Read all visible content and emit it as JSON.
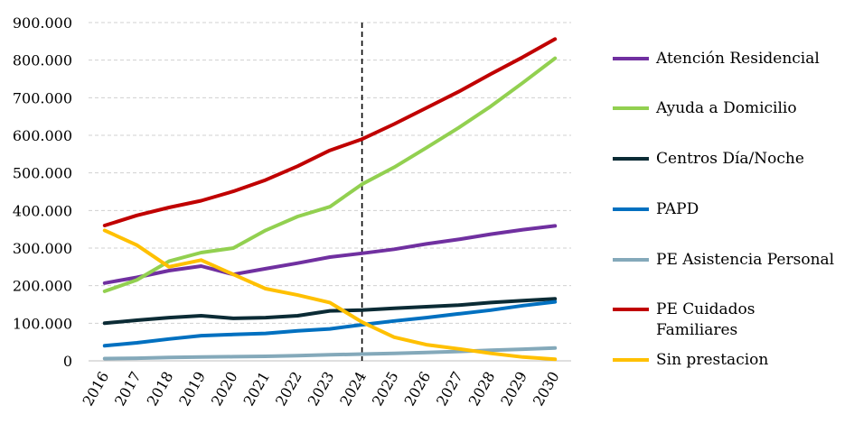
{
  "chart_data": {
    "type": "line",
    "x": [
      "2016",
      "2017",
      "2018",
      "2019",
      "2020",
      "2021",
      "2022",
      "2023",
      "2024",
      "2025",
      "2026",
      "2027",
      "2028",
      "2029",
      "2030"
    ],
    "yticks": [
      "0",
      "100.000",
      "200.000",
      "300.000",
      "400.000",
      "500.000",
      "600.000",
      "700.000",
      "800.000",
      "900.000"
    ],
    "ylim": [
      0,
      900000
    ],
    "grid": true,
    "legend_position": "right",
    "vertical_marker_x": "2024",
    "series": [
      {
        "name": "Atención Residencial",
        "color": "#7030A0",
        "values": [
          207000,
          222000,
          240000,
          252000,
          230000,
          245000,
          260000,
          276000,
          286000,
          297000,
          311000,
          323000,
          337000,
          349000,
          359000
        ]
      },
      {
        "name": "Ayuda a Domicilio",
        "color": "#92D050",
        "values": [
          185000,
          215000,
          265000,
          288000,
          300000,
          347000,
          384000,
          410000,
          470000,
          515000,
          567000,
          620000,
          677000,
          740000,
          805000
        ]
      },
      {
        "name": "Centros Día/Noche",
        "color": "#0B2B35",
        "values": [
          100000,
          108000,
          115000,
          120000,
          113000,
          115000,
          120000,
          133000,
          135000,
          140000,
          144000,
          148000,
          155000,
          160000,
          165000
        ]
      },
      {
        "name": "PAPD",
        "color": "#0070C0",
        "values": [
          40000,
          48000,
          58000,
          67000,
          70000,
          73000,
          80000,
          85000,
          96000,
          106000,
          115000,
          125000,
          135000,
          147000,
          157000
        ]
      },
      {
        "name": "PE Asistencia Personal",
        "color": "#84A9BA",
        "values": [
          6000,
          7000,
          9000,
          10000,
          11000,
          12000,
          14000,
          16000,
          18000,
          20000,
          22000,
          25000,
          28000,
          31000,
          34000
        ]
      },
      {
        "name": "PE Cuidados Familiares",
        "color": "#C00000",
        "values": [
          360000,
          387000,
          408000,
          426000,
          451000,
          481000,
          518000,
          560000,
          590000,
          630000,
          673000,
          716000,
          763000,
          808000,
          856000
        ]
      },
      {
        "name": "Sin prestacion",
        "color": "#FFC000",
        "values": [
          347000,
          308000,
          250000,
          268000,
          230000,
          192000,
          175000,
          155000,
          103000,
          63000,
          43000,
          32000,
          20000,
          10000,
          4000
        ]
      }
    ]
  }
}
